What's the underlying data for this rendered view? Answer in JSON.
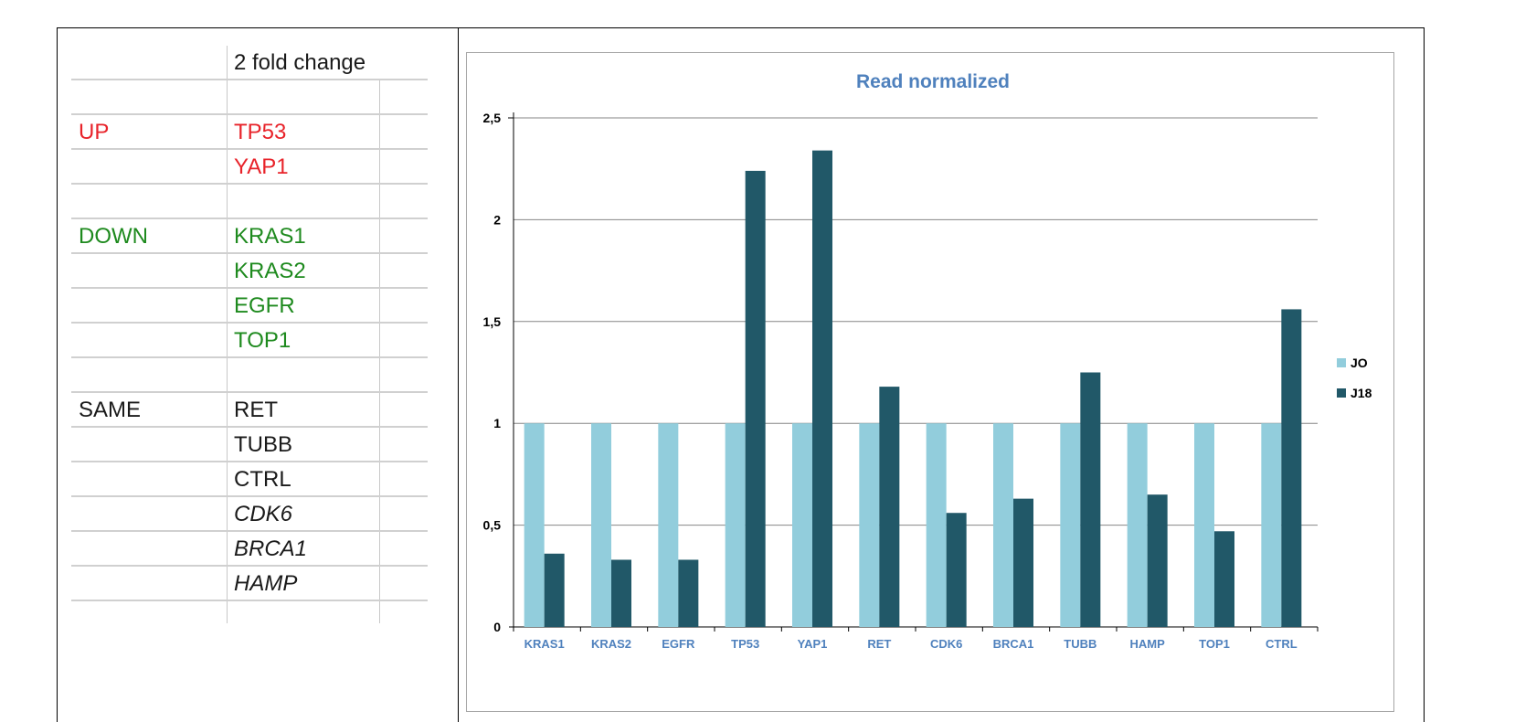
{
  "table": {
    "header": "2 fold change",
    "rows": [
      {
        "group": "",
        "gene": "",
        "cls": ""
      },
      {
        "group": "UP",
        "gene": "TP53",
        "cls": "up"
      },
      {
        "group": "",
        "gene": "YAP1",
        "cls": "up"
      },
      {
        "group": "",
        "gene": "",
        "cls": ""
      },
      {
        "group": "DOWN",
        "gene": "KRAS1",
        "cls": "down"
      },
      {
        "group": "",
        "gene": "KRAS2",
        "cls": "down"
      },
      {
        "group": "",
        "gene": "EGFR",
        "cls": "down"
      },
      {
        "group": "",
        "gene": "TOP1",
        "cls": "down"
      },
      {
        "group": "",
        "gene": "",
        "cls": ""
      },
      {
        "group": "SAME",
        "gene": "RET",
        "cls": "same"
      },
      {
        "group": "",
        "gene": "TUBB",
        "cls": "same"
      },
      {
        "group": "",
        "gene": "CTRL",
        "cls": "same"
      },
      {
        "group": "",
        "gene": "CDK6",
        "cls": "same italic"
      },
      {
        "group": "",
        "gene": "BRCA1",
        "cls": "same italic"
      },
      {
        "group": "",
        "gene": "HAMP",
        "cls": "same italic"
      }
    ]
  },
  "chart_data": {
    "type": "bar",
    "title": "Read normalized",
    "categories": [
      "KRAS1",
      "KRAS2",
      "EGFR",
      "TP53",
      "YAP1",
      "RET",
      "CDK6",
      "BRCA1",
      "TUBB",
      "HAMP",
      "TOP1",
      "CTRL"
    ],
    "series": [
      {
        "name": "JO",
        "color": "#92cddc",
        "values": [
          1,
          1,
          1,
          1,
          1,
          1,
          1,
          1,
          1,
          1,
          1,
          1
        ]
      },
      {
        "name": "J18",
        "color": "#215868",
        "values": [
          0.36,
          0.33,
          0.33,
          2.24,
          2.34,
          1.18,
          0.56,
          0.63,
          1.25,
          0.65,
          0.47,
          1.56
        ]
      }
    ],
    "yticks": [
      "0",
      "0,5",
      "1",
      "1,5",
      "2",
      "2,5"
    ],
    "ylim": [
      0,
      2.5
    ],
    "grid": true,
    "legend": "right",
    "colors": {
      "title": "#4f81bd",
      "categoryLabel": "#4f81bd",
      "axis": "#000000",
      "grid": "#868686"
    }
  }
}
